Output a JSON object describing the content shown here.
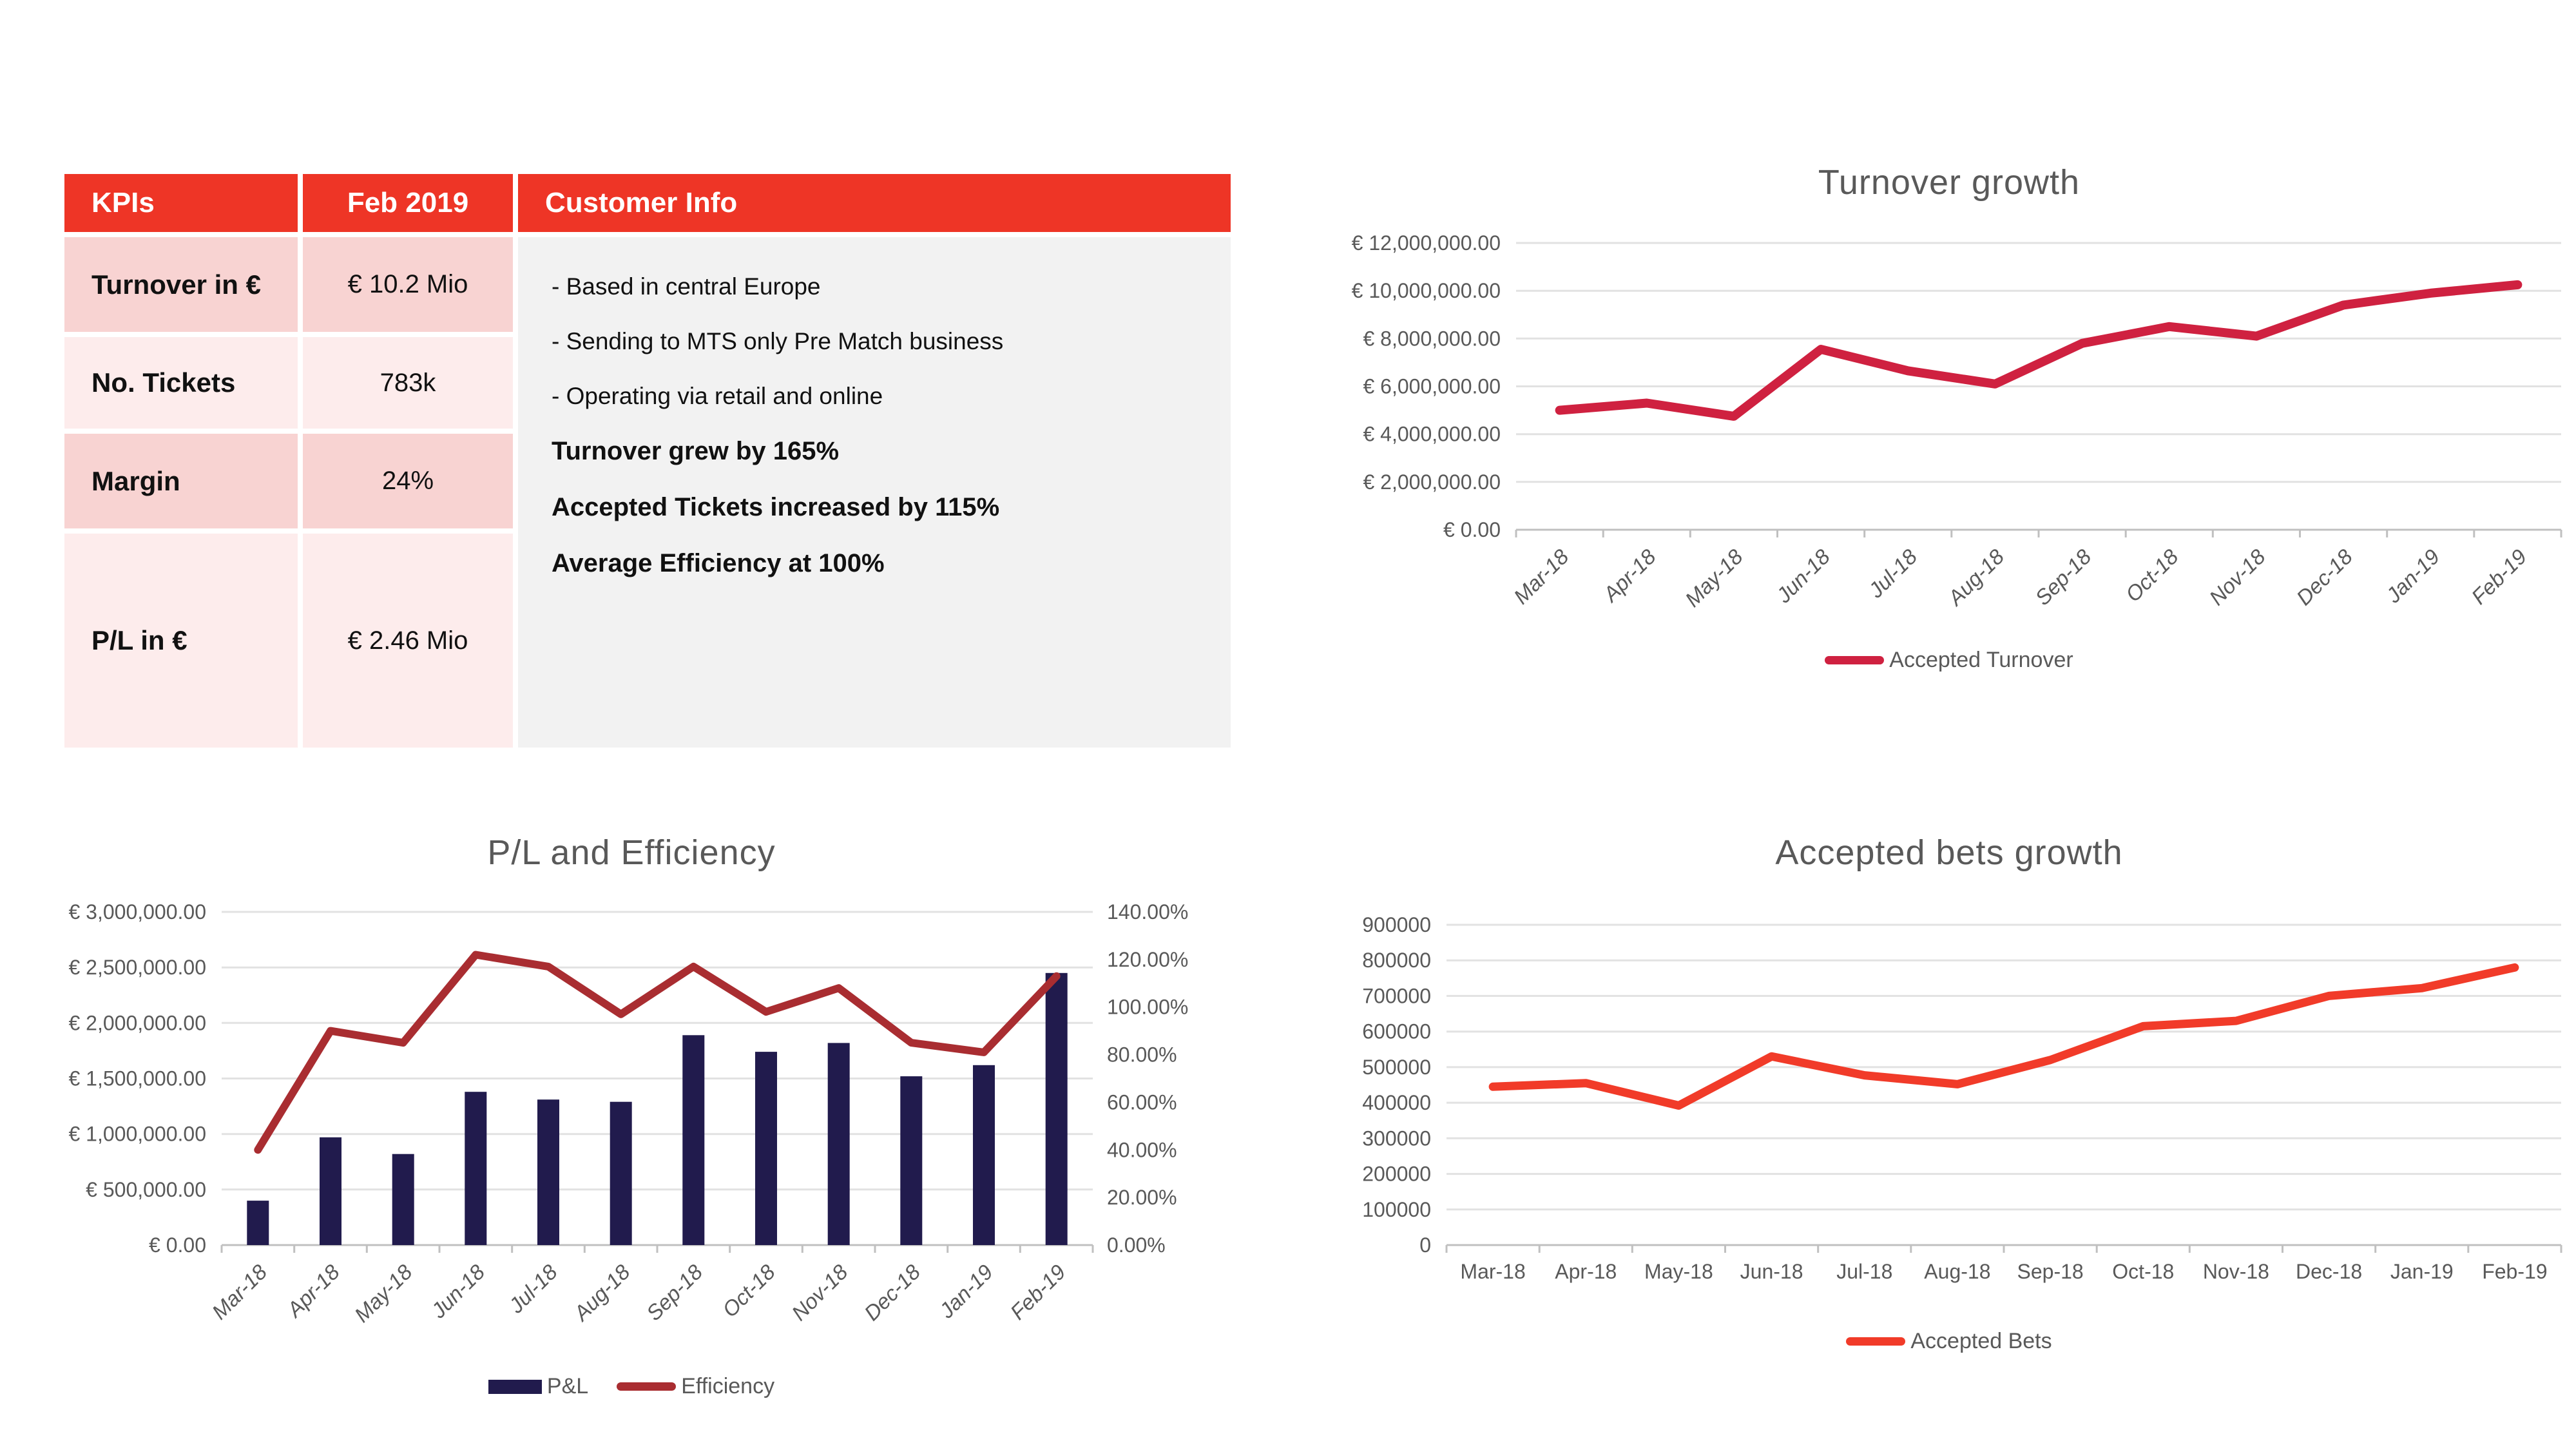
{
  "kpi_table": {
    "headers": {
      "col1": "KPIs",
      "col2": "Feb 2019",
      "col3": "Customer Info"
    },
    "rows": [
      {
        "label": "Turnover in €",
        "value": "€ 10.2 Mio"
      },
      {
        "label": "No. Tickets",
        "value": "783k"
      },
      {
        "label": "Margin",
        "value": "24%"
      },
      {
        "label": "P/L in €",
        "value": "€ 2.46 Mio"
      }
    ],
    "customer_info": {
      "bullets": [
        "- Based in central Europe",
        "- Sending to MTS only Pre Match business",
        "- Operating via retail and online"
      ],
      "highlights": [
        "Turnover grew by 165%",
        "Accepted Tickets increased by 115%",
        "Average Efficiency at 100%"
      ]
    },
    "colors": {
      "header_bg": "#ee3526",
      "header_text": "#ffffff",
      "row_dark": "#f8d3d2",
      "row_light": "#fdecec",
      "info_bg": "#f2f2f2"
    }
  },
  "chart_data": [
    {
      "id": "turnover-growth",
      "type": "line",
      "title": "Turnover growth",
      "categories": [
        "Mar-18",
        "Apr-18",
        "May-18",
        "Jun-18",
        "Jul-18",
        "Aug-18",
        "Sep-18",
        "Oct-18",
        "Nov-18",
        "Dec-18",
        "Jan-19",
        "Feb-19"
      ],
      "xlabel": "",
      "ylabel": "",
      "ylim": [
        0,
        12000000
      ],
      "y_ticks": [
        "€ 12,000,000.00",
        "€ 10,000,000.00",
        "€ 8,000,000.00",
        "€ 6,000,000.00",
        "€ 4,000,000.00",
        "€ 2,000,000.00",
        "€ 0.00"
      ],
      "grid": true,
      "legend_position": "bottom",
      "series": [
        {
          "name": "Accepted Turnover",
          "values": [
            5000000,
            5300000,
            4750000,
            7550000,
            6650000,
            6100000,
            7800000,
            8500000,
            8100000,
            9400000,
            9900000,
            10250000
          ],
          "color": "#cf2140"
        }
      ]
    },
    {
      "id": "pl-and-efficiency",
      "type": "bar+line",
      "title": "P/L and Efficiency",
      "categories": [
        "Mar-18",
        "Apr-18",
        "May-18",
        "Jun-18",
        "Jul-18",
        "Aug-18",
        "Sep-18",
        "Oct-18",
        "Nov-18",
        "Dec-18",
        "Jan-19",
        "Feb-19"
      ],
      "xlabel": "",
      "ylabel": "",
      "ylim_left": [
        0,
        3000000
      ],
      "ylim_right": [
        0,
        140
      ],
      "y_ticks_left": [
        "€ 3,000,000.00",
        "€ 2,500,000.00",
        "€ 2,000,000.00",
        "€ 1,500,000.00",
        "€ 1,000,000.00",
        "€ 500,000.00",
        "€ 0.00"
      ],
      "y_ticks_right": [
        "140.00%",
        "120.00%",
        "100.00%",
        "80.00%",
        "60.00%",
        "40.00%",
        "20.00%",
        "0.00%"
      ],
      "grid": true,
      "legend_position": "bottom",
      "series": [
        {
          "name": "P&L",
          "chart": "bar",
          "axis": "left",
          "values": [
            400000,
            970000,
            820000,
            1380000,
            1310000,
            1290000,
            1890000,
            1740000,
            1820000,
            1520000,
            1620000,
            2450000
          ],
          "color": "#211b4d"
        },
        {
          "name": "Efficiency",
          "chart": "line",
          "axis": "right",
          "values": [
            40,
            90,
            85,
            122,
            117,
            97,
            117,
            98,
            108,
            85,
            81,
            113
          ],
          "color": "#a92d31"
        }
      ]
    },
    {
      "id": "accepted-bets-growth",
      "type": "line",
      "title": "Accepted bets growth",
      "categories": [
        "Mar-18",
        "Apr-18",
        "May-18",
        "Jun-18",
        "Jul-18",
        "Aug-18",
        "Sep-18",
        "Oct-18",
        "Nov-18",
        "Dec-18",
        "Jan-19",
        "Feb-19"
      ],
      "xlabel": "",
      "ylabel": "",
      "ylim": [
        0,
        900000
      ],
      "y_ticks": [
        "900000",
        "800000",
        "700000",
        "600000",
        "500000",
        "400000",
        "300000",
        "200000",
        "100000",
        "0"
      ],
      "grid": true,
      "legend_position": "bottom",
      "series": [
        {
          "name": "Accepted Bets",
          "values": [
            445000,
            455000,
            392000,
            530000,
            477000,
            452000,
            520000,
            615000,
            630000,
            700000,
            722000,
            780000
          ],
          "color": "#f13b29"
        }
      ]
    }
  ]
}
